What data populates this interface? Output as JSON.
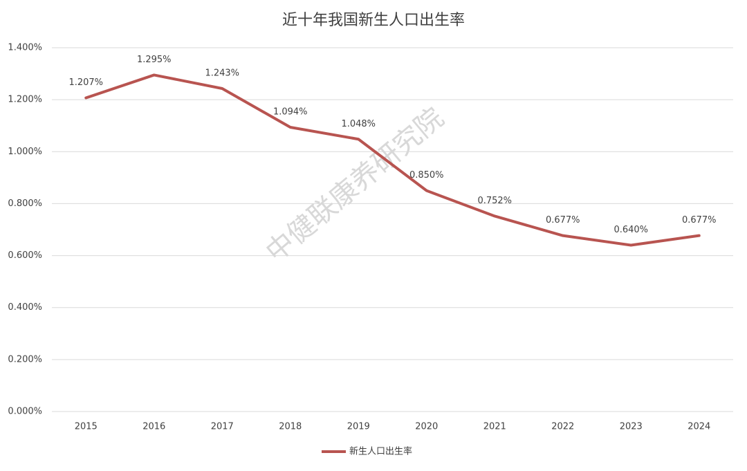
{
  "chart_data": {
    "type": "line",
    "title": "近十年我国新生人口出生率",
    "watermark": "中健联康养研究院",
    "categories": [
      "2015",
      "2016",
      "2017",
      "2018",
      "2019",
      "2020",
      "2021",
      "2022",
      "2023",
      "2024"
    ],
    "series": [
      {
        "name": "新生人口出生率",
        "color": "#b85450",
        "values": [
          1.207,
          1.295,
          1.243,
          1.094,
          1.048,
          0.85,
          0.752,
          0.677,
          0.64,
          0.677
        ],
        "value_labels": [
          "1.207%",
          "1.295%",
          "1.243%",
          "1.094%",
          "1.048%",
          "0.850%",
          "0.752%",
          "0.677%",
          "0.640%",
          "0.677%"
        ]
      }
    ],
    "ylim": [
      0,
      1.4
    ],
    "yticks": [
      {
        "value": 0,
        "label": "0.000%"
      },
      {
        "value": 0.2,
        "label": "0.200%"
      },
      {
        "value": 0.4,
        "label": "0.400%"
      },
      {
        "value": 0.6,
        "label": "0.600%"
      },
      {
        "value": 0.8,
        "label": "0.800%"
      },
      {
        "value": 1.0,
        "label": "1.000%"
      },
      {
        "value": 1.2,
        "label": "1.200%"
      },
      {
        "value": 1.4,
        "label": "1.400%"
      }
    ],
    "grid": true,
    "legend": "bottom"
  }
}
